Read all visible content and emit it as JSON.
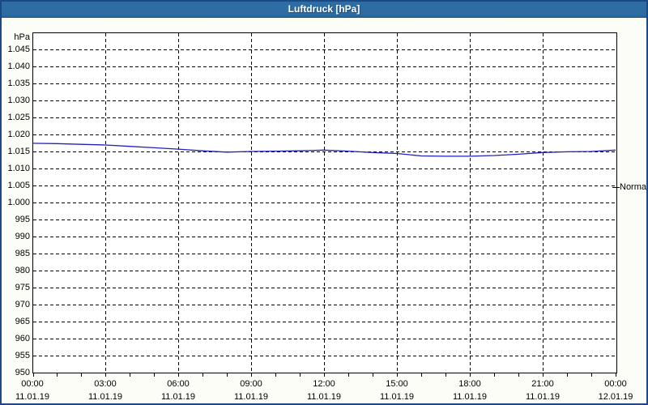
{
  "window": {
    "title": "Luftdruck [hPa]"
  },
  "colors": {
    "titlebar": "#2d6da3",
    "window_border": "#1c4886",
    "background": "#fdfdf8",
    "plot_background": "#ffffff",
    "grid": "#000000",
    "series_line": "#2121bd",
    "text": "#000000"
  },
  "chart_data": {
    "type": "line",
    "title": "Luftdruck [hPa]",
    "ylabel": "hPa",
    "ylim": [
      950,
      1050
    ],
    "grid": "dashed",
    "legend_position": "right-marker",
    "y_ticks": [
      {
        "label": "1.045",
        "value": 1045
      },
      {
        "label": "1.040",
        "value": 1040
      },
      {
        "label": "1.035",
        "value": 1035
      },
      {
        "label": "1.030",
        "value": 1030
      },
      {
        "label": "1.025",
        "value": 1025
      },
      {
        "label": "1.020",
        "value": 1020
      },
      {
        "label": "1.015",
        "value": 1015
      },
      {
        "label": "1.010",
        "value": 1010
      },
      {
        "label": "1.005",
        "value": 1005
      },
      {
        "label": "1.000",
        "value": 1000
      },
      {
        "label": "995",
        "value": 995
      },
      {
        "label": "990",
        "value": 990
      },
      {
        "label": "985",
        "value": 985
      },
      {
        "label": "980",
        "value": 980
      },
      {
        "label": "975",
        "value": 975
      },
      {
        "label": "970",
        "value": 970
      },
      {
        "label": "965",
        "value": 965
      },
      {
        "label": "960",
        "value": 960
      },
      {
        "label": "955",
        "value": 955
      },
      {
        "label": "950",
        "value": 950
      }
    ],
    "x_ticks": [
      {
        "hour": 0,
        "time": "00:00",
        "date": "11.01.19"
      },
      {
        "hour": 3,
        "time": "03:00",
        "date": "11.01.19"
      },
      {
        "hour": 6,
        "time": "06:00",
        "date": "11.01.19"
      },
      {
        "hour": 9,
        "time": "09:00",
        "date": "11.01.19"
      },
      {
        "hour": 12,
        "time": "12:00",
        "date": "11.01.19"
      },
      {
        "hour": 15,
        "time": "15:00",
        "date": "11.01.19"
      },
      {
        "hour": 18,
        "time": "18:00",
        "date": "11.01.19"
      },
      {
        "hour": 21,
        "time": "21:00",
        "date": "11.01.19"
      },
      {
        "hour": 24,
        "time": "00:00",
        "date": "12.01.19"
      }
    ],
    "x_minor_tick_hours": 1,
    "normal_marker": {
      "label": "Normal",
      "value": 1004.5
    },
    "series": [
      {
        "name": "Luftdruck",
        "x_hours": [
          0,
          1,
          2,
          3,
          4,
          5,
          6,
          7,
          8,
          9,
          10,
          11,
          12,
          13,
          14,
          15,
          16,
          17,
          18,
          19,
          20,
          21,
          22,
          23,
          24
        ],
        "values": [
          1017.4,
          1017.3,
          1017.1,
          1016.9,
          1016.5,
          1016.1,
          1015.7,
          1015.2,
          1014.8,
          1015.0,
          1015.1,
          1015.2,
          1015.4,
          1015.1,
          1014.7,
          1014.4,
          1013.7,
          1013.6,
          1013.6,
          1013.8,
          1014.2,
          1014.7,
          1014.9,
          1015.0,
          1015.4
        ]
      }
    ]
  }
}
